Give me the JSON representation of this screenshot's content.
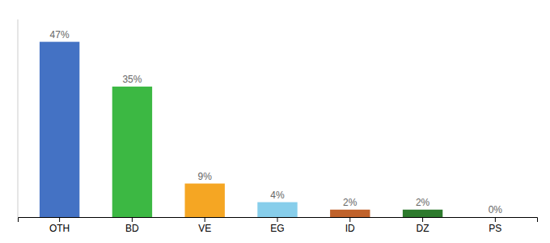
{
  "chart_data": {
    "type": "bar",
    "categories": [
      "OTH",
      "BD",
      "VE",
      "EG",
      "ID",
      "DZ",
      "PS"
    ],
    "values": [
      47,
      35,
      9,
      4,
      2,
      2,
      0
    ],
    "value_labels": [
      "47%",
      "35%",
      "9%",
      "4%",
      "2%",
      "2%",
      "0%"
    ],
    "colors": [
      "#4472c4",
      "#3cb843",
      "#f5a623",
      "#87ceeb",
      "#c0622b",
      "#2d7a2d",
      "#cccccc"
    ],
    "ylim": [
      0,
      53
    ],
    "data_labels": true,
    "tick_labels": "x",
    "grid": false
  }
}
